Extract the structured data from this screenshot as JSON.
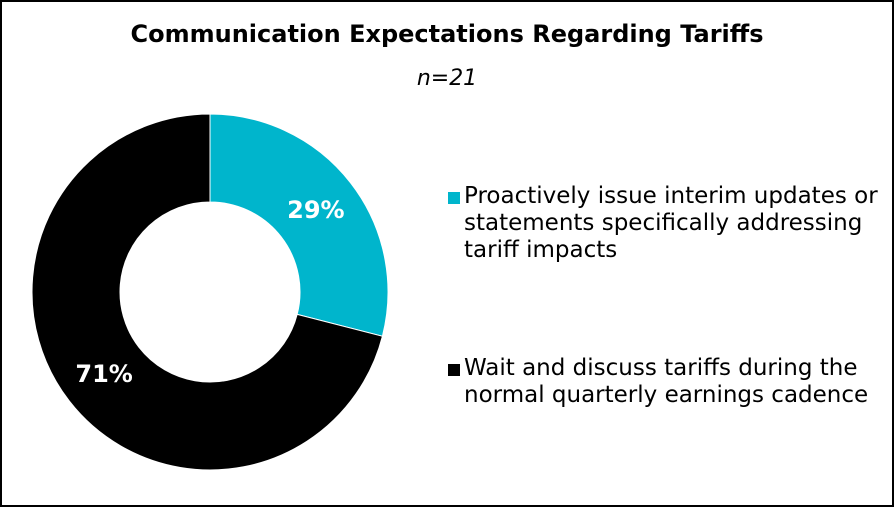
{
  "chart_data": {
    "type": "pie",
    "donut": true,
    "title": "Communication Expectations Regarding Tariffs",
    "subtitle": "n=21",
    "slices": [
      {
        "label": "Proactively issue interim updates or statements specifically addressing tariff impacts",
        "value": 29,
        "data_label": "29%",
        "color": "#00B5CC"
      },
      {
        "label": "Wait and discuss tariffs during the normal quarterly earnings cadence",
        "value": 71,
        "data_label": "71%",
        "color": "#000000"
      }
    ],
    "legend_position": "right"
  }
}
